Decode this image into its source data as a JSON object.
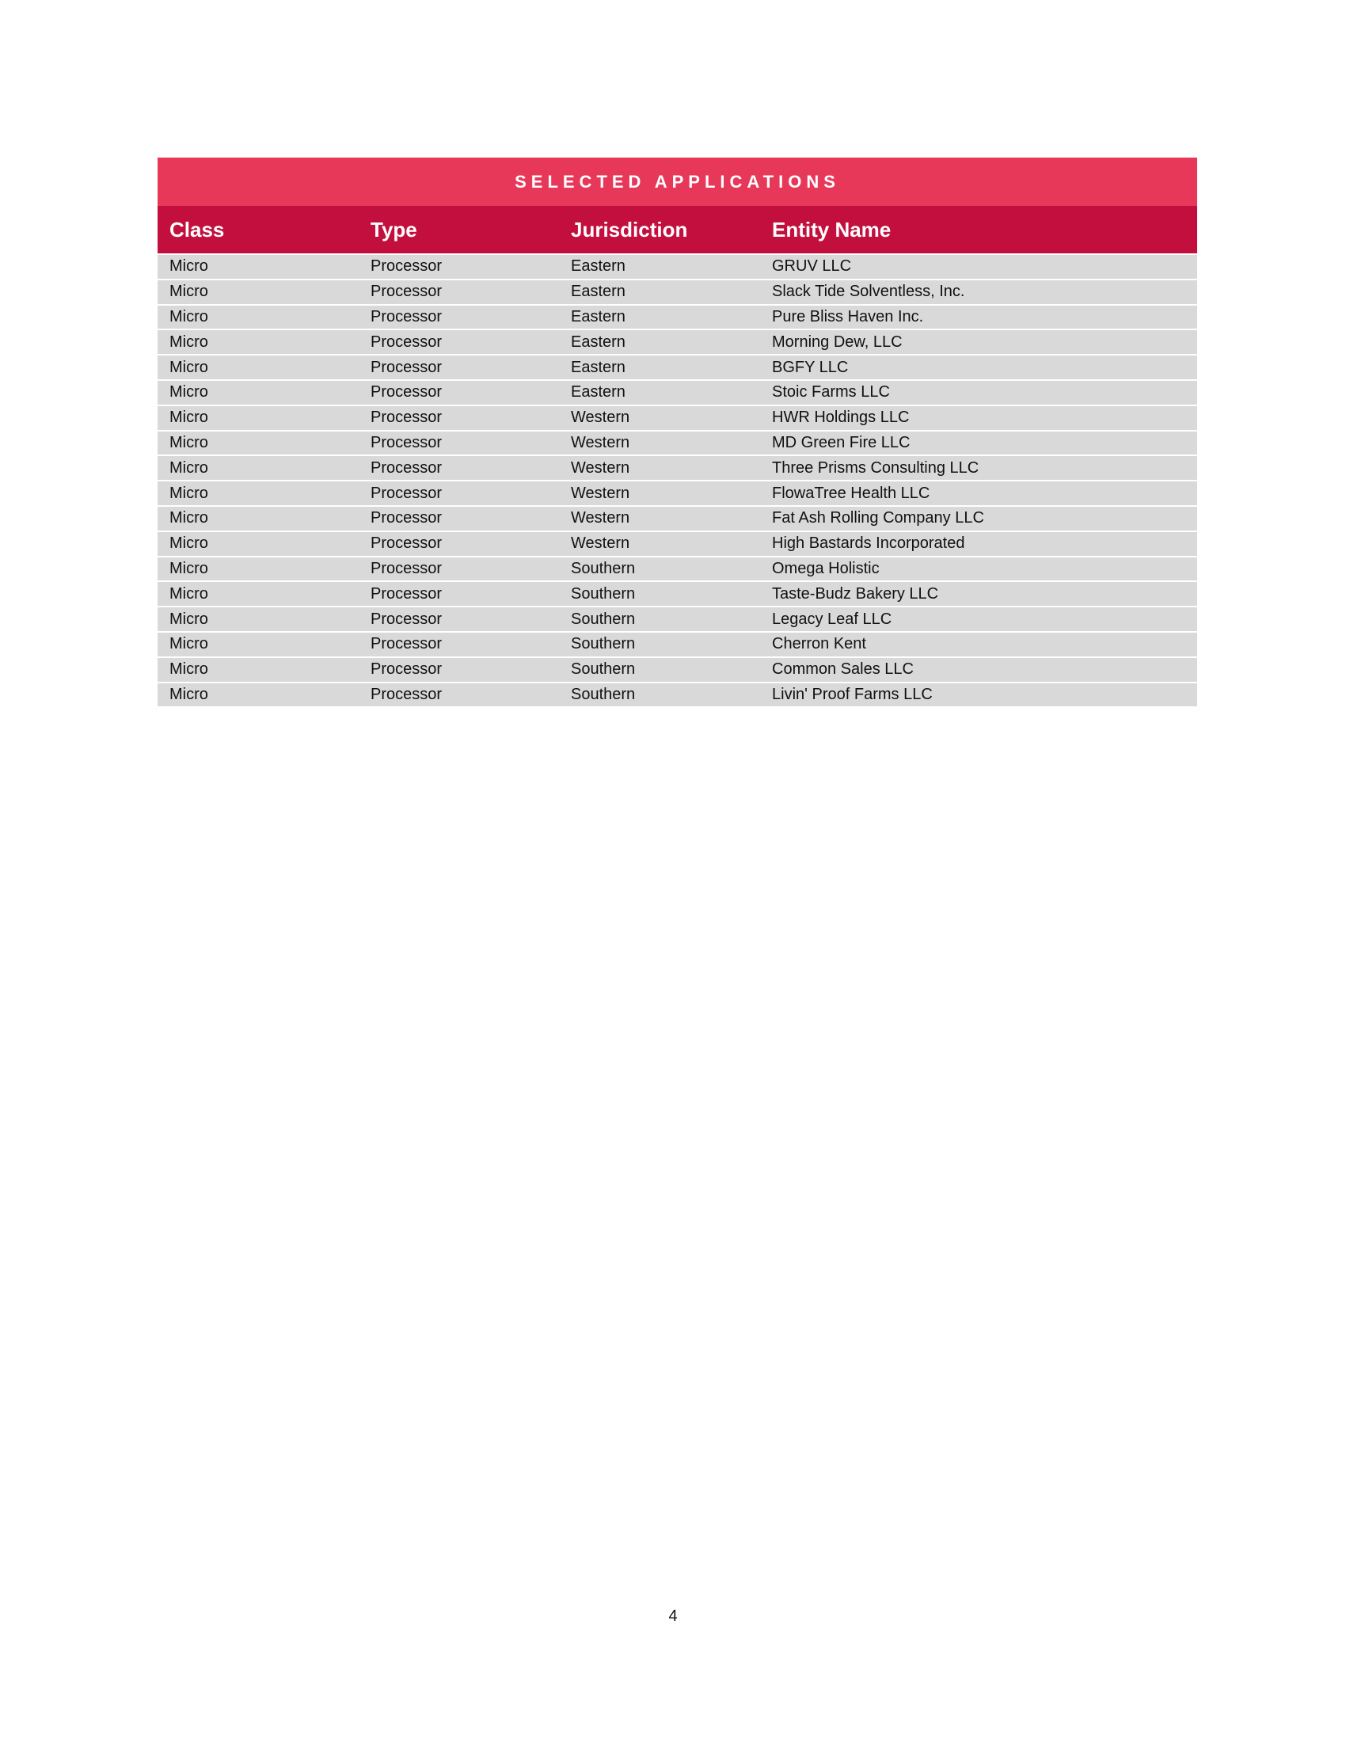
{
  "table": {
    "title": "SELECTED APPLICATIONS",
    "columns": [
      "Class",
      "Type",
      "Jurisdiction",
      "Entity Name"
    ],
    "rows": [
      [
        "Micro",
        "Processor",
        "Eastern",
        "GRUV LLC"
      ],
      [
        "Micro",
        "Processor",
        "Eastern",
        "Slack Tide Solventless, Inc."
      ],
      [
        "Micro",
        "Processor",
        "Eastern",
        "Pure Bliss Haven Inc."
      ],
      [
        "Micro",
        "Processor",
        "Eastern",
        "Morning Dew, LLC"
      ],
      [
        "Micro",
        "Processor",
        "Eastern",
        "BGFY LLC"
      ],
      [
        "Micro",
        "Processor",
        "Eastern",
        "Stoic Farms LLC"
      ],
      [
        "Micro",
        "Processor",
        "Western",
        "HWR Holdings LLC"
      ],
      [
        "Micro",
        "Processor",
        "Western",
        "MD Green Fire LLC"
      ],
      [
        "Micro",
        "Processor",
        "Western",
        "Three Prisms Consulting LLC"
      ],
      [
        "Micro",
        "Processor",
        "Western",
        "FlowaTree Health LLC"
      ],
      [
        "Micro",
        "Processor",
        "Western",
        "Fat Ash Rolling Company LLC"
      ],
      [
        "Micro",
        "Processor",
        "Western",
        "High Bastards Incorporated"
      ],
      [
        "Micro",
        "Processor",
        "Southern",
        "Omega Holistic"
      ],
      [
        "Micro",
        "Processor",
        "Southern",
        "Taste-Budz Bakery LLC"
      ],
      [
        "Micro",
        "Processor",
        "Southern",
        "Legacy Leaf LLC"
      ],
      [
        "Micro",
        "Processor",
        "Southern",
        "Cherron Kent"
      ],
      [
        "Micro",
        "Processor",
        "Southern",
        "Common Sales LLC"
      ],
      [
        "Micro",
        "Processor",
        "Southern",
        "Livin' Proof Farms LLC"
      ]
    ]
  },
  "colors": {
    "title_bg": "#E8385A",
    "header_bg": "#C30F3E",
    "row_bg": "#D9D9D9"
  },
  "page_number": "4"
}
